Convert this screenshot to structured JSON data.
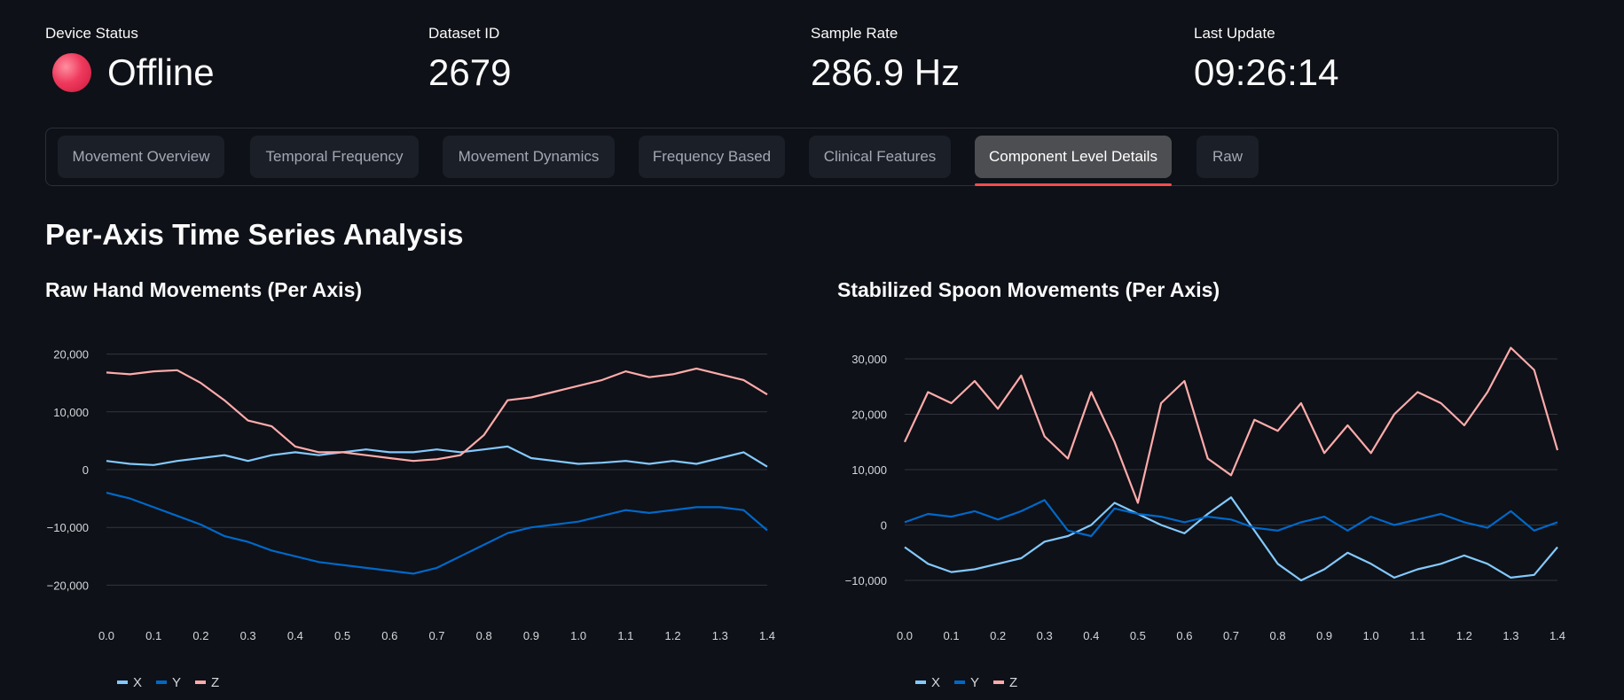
{
  "metrics": {
    "device_status": {
      "label": "Device Status",
      "value": "Offline",
      "color": "#ef3a5d"
    },
    "dataset_id": {
      "label": "Dataset ID",
      "value": "2679"
    },
    "sample_rate": {
      "label": "Sample Rate",
      "value": "286.9 Hz"
    },
    "last_update": {
      "label": "Last Update",
      "value": "09:26:14"
    }
  },
  "tabs": [
    {
      "label": "Movement Overview",
      "active": false
    },
    {
      "label": "Temporal Frequency",
      "active": false
    },
    {
      "label": "Movement Dynamics",
      "active": false
    },
    {
      "label": "Frequency Based",
      "active": false
    },
    {
      "label": "Clinical Features",
      "active": false
    },
    {
      "label": "Component Level Details",
      "active": true
    },
    {
      "label": "Raw",
      "active": false
    }
  ],
  "section_title": "Per-Axis Time Series Analysis",
  "colors": {
    "accent": "#ff4b4b",
    "x": "#83c9ff",
    "y": "#0068c9",
    "z": "#ffabab"
  },
  "chart_data": [
    {
      "type": "line",
      "title": "Raw Hand Movements (Per Axis)",
      "x": [
        0,
        0.05,
        0.1,
        0.15,
        0.2,
        0.25,
        0.3,
        0.35,
        0.4,
        0.45,
        0.5,
        0.55,
        0.6,
        0.65,
        0.7,
        0.75,
        0.8,
        0.85,
        0.9,
        0.95,
        1.0,
        1.05,
        1.1,
        1.15,
        1.2,
        1.25,
        1.3,
        1.35,
        1.4
      ],
      "xlim": [
        0,
        1.4
      ],
      "ylim": [
        -23000,
        23000
      ],
      "yticks": [
        -20000,
        -10000,
        0,
        10000,
        20000
      ],
      "ytick_labels": [
        "−20,000",
        "−10,000",
        "0",
        "10,000",
        "20,000"
      ],
      "xticks": [
        0.0,
        0.1,
        0.2,
        0.3,
        0.4,
        0.5,
        0.6,
        0.7,
        0.8,
        0.9,
        1.0,
        1.1,
        1.2,
        1.3,
        1.4
      ],
      "xtick_labels": [
        "0.0",
        "0.1",
        "0.2",
        "0.3",
        "0.4",
        "0.5",
        "0.6",
        "0.7",
        "0.8",
        "0.9",
        "1.0",
        "1.1",
        "1.2",
        "1.3",
        "1.4"
      ],
      "grid": true,
      "legend_position": "bottom-left",
      "series": [
        {
          "name": "X",
          "values": [
            1500,
            1000,
            800,
            1500,
            2000,
            2500,
            1500,
            2500,
            3000,
            2500,
            3000,
            3500,
            3000,
            3000,
            3500,
            3000,
            3500,
            4000,
            2000,
            1500,
            1000,
            1200,
            1500,
            1000,
            1500,
            1000,
            2000,
            3000,
            500
          ]
        },
        {
          "name": "Y",
          "values": [
            -4000,
            -5000,
            -6500,
            -8000,
            -9500,
            -11500,
            -12500,
            -14000,
            -15000,
            -16000,
            -16500,
            -17000,
            -17500,
            -18000,
            -17000,
            -15000,
            -13000,
            -11000,
            -10000,
            -9500,
            -9000,
            -8000,
            -7000,
            -7500,
            -7000,
            -6500,
            -6500,
            -7000,
            -10500
          ]
        },
        {
          "name": "Z",
          "values": [
            16800,
            16500,
            17000,
            17200,
            15000,
            12000,
            8500,
            7500,
            4000,
            3000,
            3000,
            2500,
            2000,
            1500,
            1800,
            2500,
            6000,
            12000,
            12500,
            13500,
            14500,
            15500,
            17000,
            16000,
            16500,
            17500,
            16500,
            15500,
            13000
          ]
        }
      ]
    },
    {
      "type": "line",
      "title": "Stabilized Spoon Movements (Per Axis)",
      "x": [
        0,
        0.05,
        0.1,
        0.15,
        0.2,
        0.25,
        0.3,
        0.35,
        0.4,
        0.45,
        0.5,
        0.55,
        0.6,
        0.65,
        0.7,
        0.75,
        0.8,
        0.85,
        0.9,
        0.95,
        1.0,
        1.05,
        1.1,
        1.15,
        1.2,
        1.25,
        1.3,
        1.35,
        1.4
      ],
      "xlim": [
        0,
        1.4
      ],
      "ylim": [
        -14000,
        34000
      ],
      "yticks": [
        -10000,
        0,
        10000,
        20000,
        30000
      ],
      "ytick_labels": [
        "−10,000",
        "0",
        "10,000",
        "20,000",
        "30,000"
      ],
      "xticks": [
        0.0,
        0.1,
        0.2,
        0.3,
        0.4,
        0.5,
        0.6,
        0.7,
        0.8,
        0.9,
        1.0,
        1.1,
        1.2,
        1.3,
        1.4
      ],
      "xtick_labels": [
        "0.0",
        "0.1",
        "0.2",
        "0.3",
        "0.4",
        "0.5",
        "0.6",
        "0.7",
        "0.8",
        "0.9",
        "1.0",
        "1.1",
        "1.2",
        "1.3",
        "1.4"
      ],
      "grid": true,
      "legend_position": "bottom-left",
      "series": [
        {
          "name": "X",
          "values": [
            -4000,
            -7000,
            -8500,
            -8000,
            -7000,
            -6000,
            -3000,
            -2000,
            0,
            4000,
            2000,
            0,
            -1500,
            2000,
            5000,
            -1000,
            -7000,
            -10000,
            -8000,
            -5000,
            -7000,
            -9500,
            -8000,
            -7000,
            -5500,
            -7000,
            -9500,
            -9000,
            -4000
          ]
        },
        {
          "name": "Y",
          "values": [
            500,
            2000,
            1500,
            2500,
            1000,
            2500,
            4500,
            -1000,
            -2000,
            3000,
            2000,
            1500,
            500,
            1500,
            1000,
            -500,
            -1000,
            500,
            1500,
            -1000,
            1500,
            0,
            1000,
            2000,
            500,
            -500,
            2500,
            -1000,
            500
          ]
        },
        {
          "name": "Z",
          "values": [
            15000,
            24000,
            22000,
            26000,
            21000,
            27000,
            16000,
            12000,
            24000,
            15000,
            4000,
            22000,
            26000,
            12000,
            9000,
            19000,
            17000,
            22000,
            13000,
            18000,
            13000,
            20000,
            24000,
            22000,
            18000,
            24000,
            32000,
            28000,
            13500
          ]
        }
      ]
    }
  ]
}
